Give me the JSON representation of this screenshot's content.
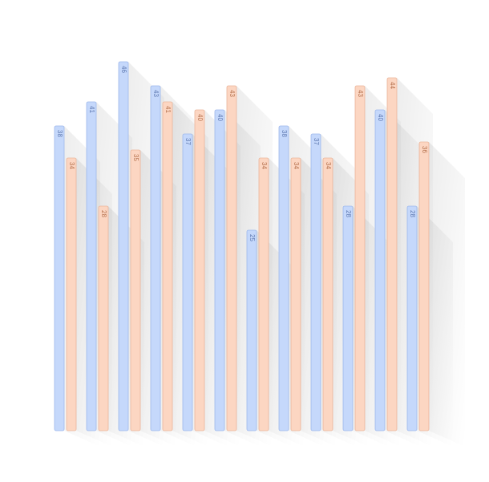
{
  "chart_data": {
    "type": "bar",
    "categories": [
      null,
      null,
      null,
      null,
      null,
      null,
      null,
      null,
      null,
      null,
      null,
      null
    ],
    "series": [
      {
        "color": "#c5d8fb",
        "values": [
          38,
          41,
          46,
          43,
          37,
          40,
          25,
          38,
          37,
          28,
          40,
          28
        ]
      },
      {
        "color": "#fcd6c2",
        "values": [
          34,
          28,
          35,
          41,
          40,
          43,
          34,
          34,
          34,
          43,
          44,
          36
        ]
      }
    ],
    "ylim": [
      0,
      50
    ]
  }
}
